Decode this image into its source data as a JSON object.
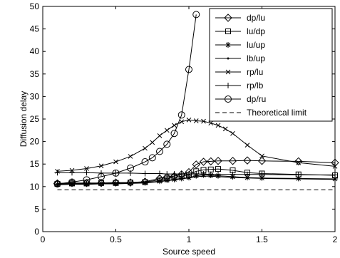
{
  "chart_data": {
    "type": "line",
    "title": "",
    "xlabel": "Source speed",
    "ylabel": "Diffusion delay",
    "xlim": [
      0,
      2
    ],
    "ylim": [
      0,
      50
    ],
    "xticks": [
      0,
      0.5,
      1,
      1.5,
      2
    ],
    "yticks": [
      0,
      5,
      10,
      15,
      20,
      25,
      30,
      35,
      40,
      45,
      50
    ],
    "xtick_labels": [
      "0",
      "0.5",
      "1",
      "1.5",
      "2"
    ],
    "ytick_labels": [
      "0",
      "5",
      "10",
      "15",
      "20",
      "25",
      "30",
      "35",
      "40",
      "45",
      "50"
    ],
    "grid": false,
    "legend_position": "top-right",
    "series": [
      {
        "name": "dp/lu",
        "marker": "diamond",
        "line": "solid",
        "x": [
          0.1,
          0.2,
          0.3,
          0.4,
          0.5,
          0.6,
          0.7,
          0.8,
          0.85,
          0.9,
          0.95,
          1.0,
          1.05,
          1.1,
          1.15,
          1.2,
          1.3,
          1.4,
          1.5,
          1.75,
          2.0
        ],
        "y": [
          10.7,
          10.8,
          10.8,
          10.8,
          10.9,
          10.9,
          11.1,
          11.8,
          12.1,
          12.3,
          12.7,
          13.2,
          14.9,
          15.5,
          15.6,
          15.7,
          15.7,
          15.8,
          15.7,
          15.6,
          15.3
        ]
      },
      {
        "name": "lu/dp",
        "marker": "square",
        "line": "solid",
        "x": [
          0.1,
          0.2,
          0.3,
          0.4,
          0.5,
          0.6,
          0.7,
          0.8,
          0.85,
          0.9,
          0.95,
          1.0,
          1.05,
          1.1,
          1.15,
          1.2,
          1.3,
          1.4,
          1.5,
          1.75,
          2.0
        ],
        "y": [
          10.6,
          10.7,
          10.7,
          10.8,
          10.8,
          10.9,
          11.0,
          11.5,
          11.8,
          12.0,
          12.3,
          12.6,
          13.4,
          13.7,
          13.8,
          13.9,
          13.6,
          13.1,
          12.9,
          12.7,
          12.5
        ]
      },
      {
        "name": "lu/up",
        "marker": "asterisk",
        "line": "solid",
        "x": [
          0.1,
          0.2,
          0.3,
          0.4,
          0.5,
          0.6,
          0.7,
          0.8,
          0.85,
          0.9,
          0.95,
          1.0,
          1.05,
          1.1,
          1.15,
          1.2,
          1.3,
          1.4,
          1.5,
          1.75,
          2.0
        ],
        "y": [
          10.5,
          10.6,
          10.6,
          10.7,
          10.7,
          10.8,
          10.9,
          11.2,
          11.4,
          11.6,
          11.8,
          12.0,
          12.4,
          12.6,
          12.5,
          12.4,
          12.2,
          12.0,
          11.9,
          11.8,
          11.7
        ]
      },
      {
        "name": "lb/up",
        "marker": "point",
        "line": "solid",
        "x": [
          0.1,
          0.2,
          0.3,
          0.4,
          0.5,
          0.6,
          0.7,
          0.8,
          0.85,
          0.9,
          0.95,
          1.0,
          1.05,
          1.1,
          1.15,
          1.2,
          1.3,
          1.4,
          1.5,
          1.75,
          2.0
        ],
        "y": [
          10.4,
          10.5,
          10.5,
          10.6,
          10.6,
          10.7,
          10.8,
          11.1,
          11.3,
          11.5,
          11.7,
          11.9,
          12.2,
          12.3,
          12.3,
          12.2,
          12.0,
          11.9,
          11.8,
          11.7,
          11.6
        ]
      },
      {
        "name": "rp/lu",
        "marker": "x",
        "line": "solid",
        "x": [
          0.1,
          0.2,
          0.3,
          0.4,
          0.5,
          0.6,
          0.7,
          0.75,
          0.8,
          0.85,
          0.9,
          0.95,
          1.0,
          1.05,
          1.1,
          1.15,
          1.2,
          1.25,
          1.3,
          1.4,
          1.5,
          1.75,
          2.0
        ],
        "y": [
          13.4,
          13.6,
          14.0,
          14.6,
          15.5,
          16.7,
          18.5,
          19.8,
          21.3,
          22.5,
          23.6,
          24.4,
          24.8,
          24.6,
          24.5,
          24.1,
          23.6,
          22.8,
          21.8,
          19.2,
          16.8,
          15.3,
          14.5
        ]
      },
      {
        "name": "rp/lb",
        "marker": "plus",
        "line": "solid",
        "x": [
          0.1,
          0.2,
          0.3,
          0.4,
          0.5,
          0.6,
          0.7,
          0.8,
          0.85,
          0.9,
          0.95,
          1.0,
          1.05,
          1.1,
          1.15,
          1.2,
          1.3,
          1.4,
          1.5,
          1.75,
          2.0
        ],
        "y": [
          13.1,
          13.1,
          13.1,
          13.0,
          13.0,
          13.0,
          12.9,
          12.9,
          12.8,
          12.8,
          12.8,
          12.8,
          12.8,
          12.8,
          12.7,
          12.7,
          12.7,
          12.7,
          12.7,
          12.6,
          12.6
        ]
      },
      {
        "name": "dp/ru",
        "marker": "circle",
        "line": "solid",
        "x": [
          0.1,
          0.2,
          0.3,
          0.4,
          0.5,
          0.6,
          0.7,
          0.75,
          0.8,
          0.85,
          0.9,
          0.95,
          1.0,
          1.05
        ],
        "y": [
          10.6,
          11.0,
          11.5,
          12.2,
          13.0,
          14.1,
          15.5,
          16.4,
          17.8,
          19.4,
          21.8,
          25.9,
          36.0,
          48.2
        ]
      },
      {
        "name": "Theoretical limit",
        "marker": "none",
        "line": "dashed",
        "x": [
          0.1,
          2.0
        ],
        "y": [
          9.3,
          9.3
        ]
      }
    ]
  }
}
